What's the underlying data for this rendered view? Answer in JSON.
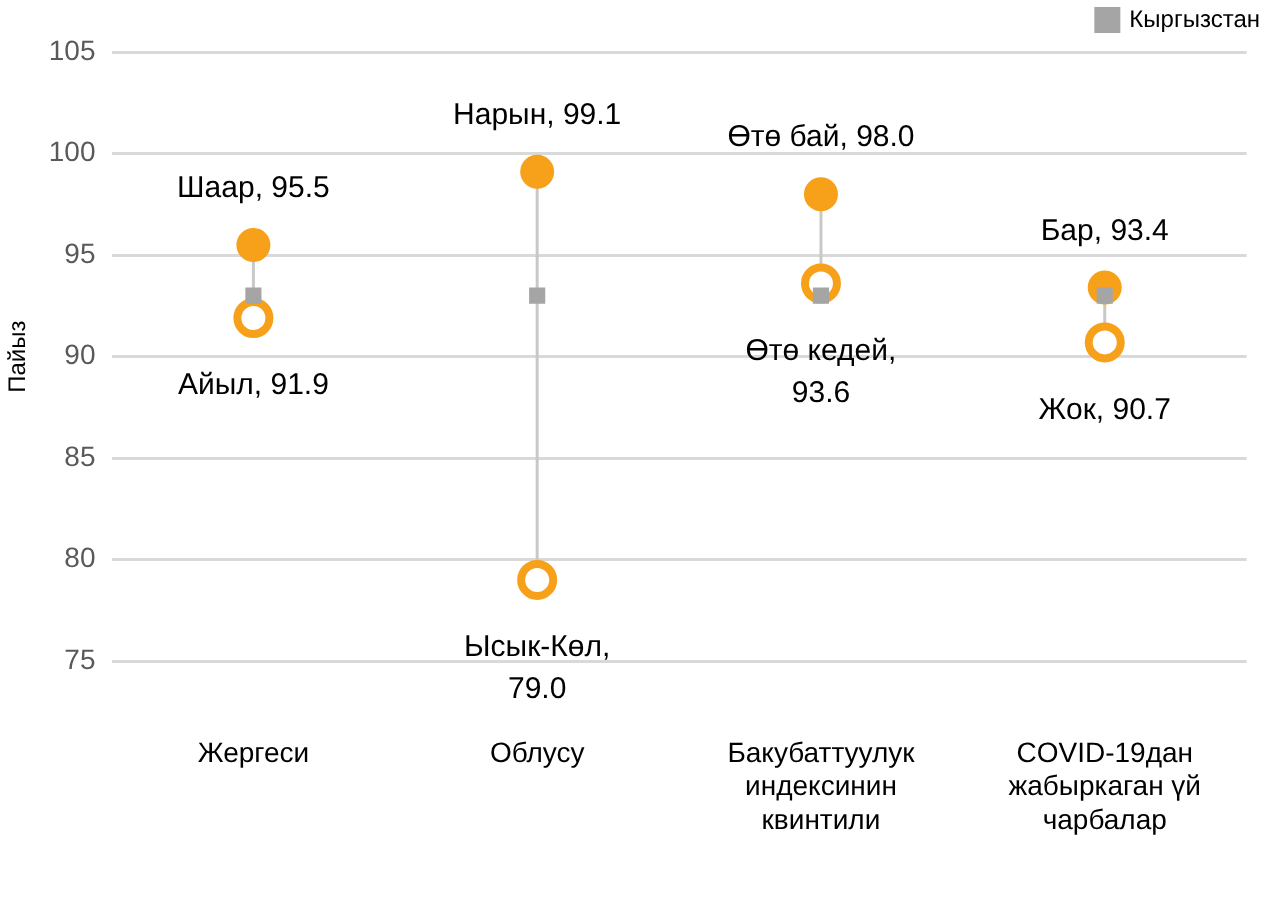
{
  "chart_data": {
    "type": "scatter",
    "ylabel": "Пайыз",
    "categories": [
      "Жергеси",
      "Облусу",
      "Бакубаттуулук индексинин квинтили",
      "COVID-19дан жабыркаган үй чарбалар"
    ],
    "series": [
      {
        "color": "#f7a11a",
        "marker": "circle",
        "values": [
          95.5,
          99.1,
          98.0,
          93.4
        ],
        "value_labels": [
          "Шаар, 95.5",
          "Нарын, 99.1",
          "Өтө бай, 98.0",
          "Бар, 93.4"
        ]
      },
      {
        "color": "#f7a11a",
        "marker": "circle-open",
        "values": [
          91.9,
          79.0,
          93.6,
          90.7
        ],
        "value_labels": [
          "Айыл, 91.9",
          "Ысык-Көл, 79.0",
          "Өтө кедей, 93.6",
          "Жок, 90.7"
        ]
      },
      {
        "name": "Кыргызстан",
        "color": "#a5a5a5",
        "marker": "square",
        "values": [
          93.0,
          93.0,
          93.0,
          93.0
        ]
      }
    ],
    "ylim": [
      75,
      105
    ],
    "yticks": [
      75,
      80,
      85,
      90,
      95,
      100,
      105
    ],
    "grid": "y",
    "legend": "top right"
  }
}
